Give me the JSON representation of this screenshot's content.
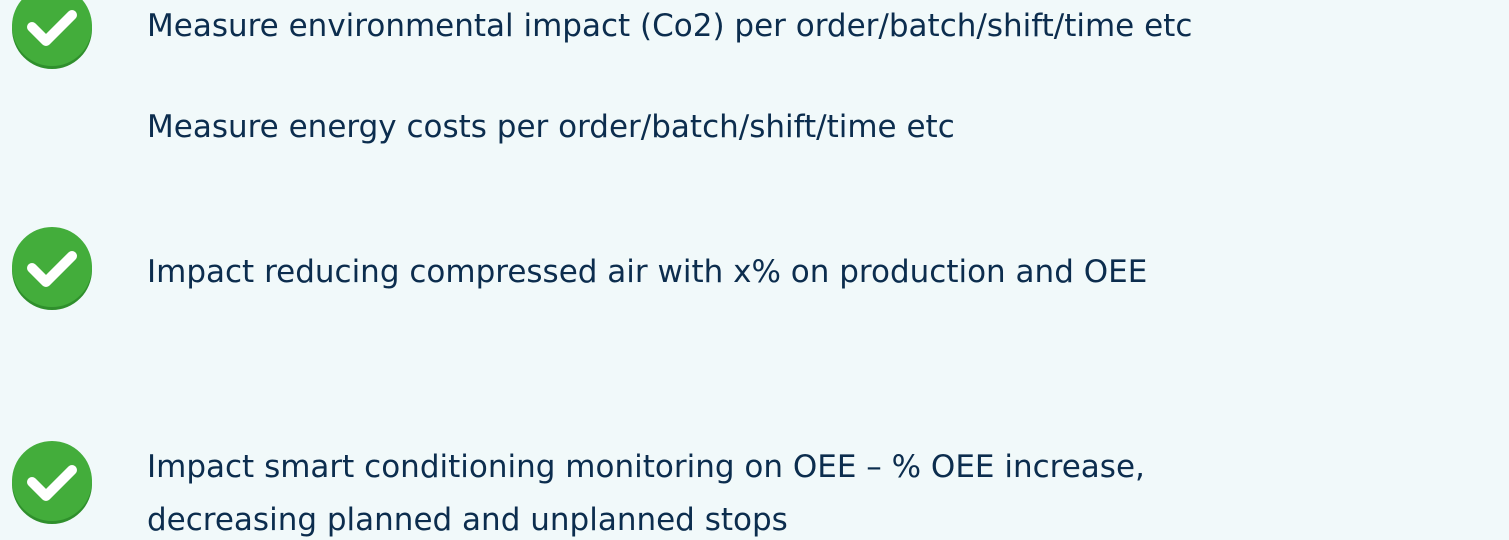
{
  "items": [
    {
      "lines": [
        "Measure environmental impact (Co2) per order/batch/shift/time etc",
        "Measure energy costs per order/batch/shift/time etc"
      ]
    },
    {
      "lines": [
        "Impact reducing compressed air with x% on production and OEE"
      ]
    },
    {
      "lines": [
        "Impact smart conditioning monitoring on OEE – % OEE increase,",
        "decreasing planned and unplanned stops"
      ]
    }
  ]
}
